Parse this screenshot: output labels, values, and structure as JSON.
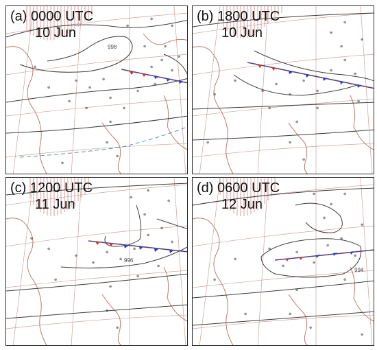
{
  "figure": {
    "panels": [
      {
        "letter": "(a)",
        "time": "0000 UTC",
        "date": "10 Jun",
        "isobar_label": "998"
      },
      {
        "letter": "(b)",
        "time": "1800 UTC",
        "date": "10 Jun",
        "isobar_label": ""
      },
      {
        "letter": "(c)",
        "time": "1200 UTC",
        "date": "11 Jun",
        "isobar_label": "996"
      },
      {
        "letter": "(d)",
        "time": "0600 UTC",
        "date": "12 Jun",
        "isobar_label": "994"
      }
    ],
    "colors": {
      "isobar": "#3a3a3a",
      "coastline": "#b77a6e",
      "graticule": "#b98b82",
      "hatch": "#c46a6a",
      "front_cold": "#2b39c9",
      "front_warm": "#d7322a",
      "trough_dashed": "#5a8fb6"
    }
  }
}
